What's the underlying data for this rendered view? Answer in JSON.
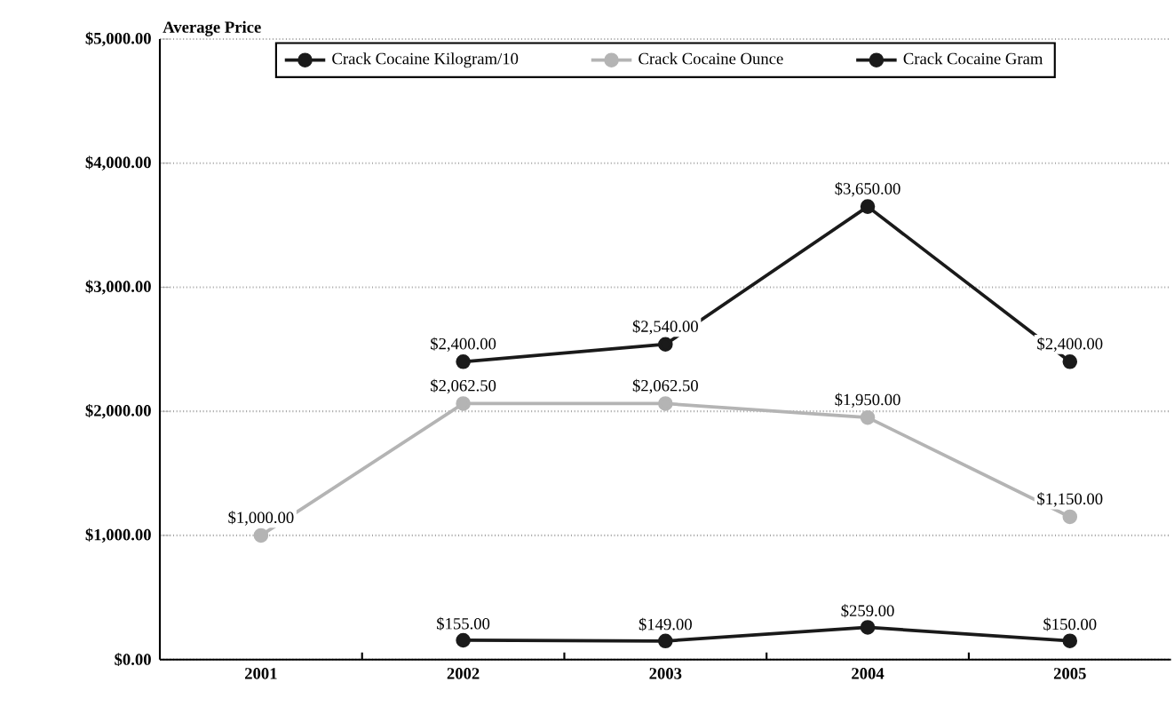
{
  "chart_data": {
    "type": "line",
    "ylabel": "Average Price",
    "categories": [
      "2001",
      "2002",
      "2003",
      "2004",
      "2005"
    ],
    "series": [
      {
        "name": "Crack Cocaine Kilogram/10",
        "color": "#1a1a1a",
        "values": [
          null,
          2400,
          2540,
          3650,
          2400
        ],
        "value_labels": [
          null,
          "$2,400.00",
          "$2,540.00",
          "$3,650.00",
          "$2,400.00"
        ]
      },
      {
        "name": "Crack Cocaine Ounce",
        "color": "#b4b4b4",
        "values": [
          1000,
          2062.5,
          2062.5,
          1950,
          1150
        ],
        "value_labels": [
          "$1,000.00",
          "$2,062.50",
          "$2,062.50",
          "$1,950.00",
          "$1,150.00"
        ]
      },
      {
        "name": "Crack Cocaine Gram",
        "color": "#1a1a1a",
        "values": [
          null,
          155,
          149,
          259,
          150
        ],
        "value_labels": [
          null,
          "$155.00",
          "$149.00",
          "$259.00",
          "$150.00"
        ]
      }
    ],
    "ylim": [
      0,
      5000
    ],
    "yticks": [
      {
        "value": 0,
        "label": "$0.00"
      },
      {
        "value": 1000,
        "label": "$1,000.00"
      },
      {
        "value": 2000,
        "label": "$2,000.00"
      },
      {
        "value": 3000,
        "label": "$3,000.00"
      },
      {
        "value": 4000,
        "label": "$4,000.00"
      },
      {
        "value": 5000,
        "label": "$5,000.00"
      }
    ],
    "grid": "y",
    "legend": "top",
    "marker": "circle",
    "line_style": "solid"
  }
}
